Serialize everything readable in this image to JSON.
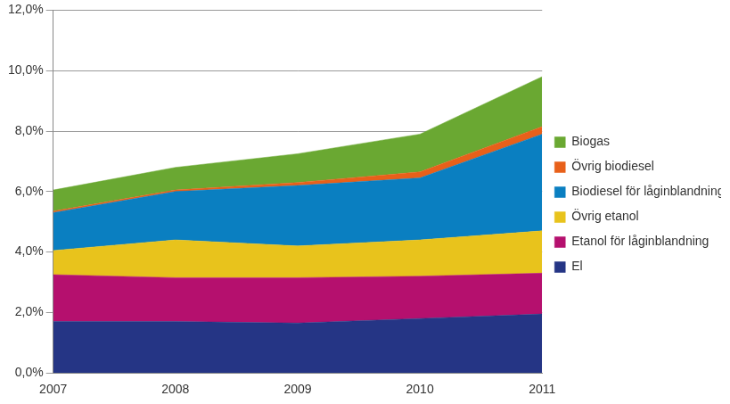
{
  "chart_data": {
    "type": "area",
    "stacked": true,
    "grid": true,
    "legend": "right",
    "categories": [
      "2007",
      "2008",
      "2009",
      "2010",
      "2011"
    ],
    "ylim": [
      0,
      12
    ],
    "yticks": [
      {
        "value": 0,
        "label": "0,0%"
      },
      {
        "value": 2,
        "label": "2,0%"
      },
      {
        "value": 4,
        "label": "4,0%"
      },
      {
        "value": 6,
        "label": "6,0%"
      },
      {
        "value": 8,
        "label": "8,0%"
      },
      {
        "value": 10,
        "label": "10,0%"
      },
      {
        "value": 12,
        "label": "12,0%"
      }
    ],
    "series": [
      {
        "name": "El",
        "color": "#253585",
        "values": [
          1.7,
          1.7,
          1.65,
          1.8,
          1.95
        ]
      },
      {
        "name": "Etanol för låginblandning",
        "color": "#b5106e",
        "values": [
          1.55,
          1.45,
          1.5,
          1.4,
          1.35
        ]
      },
      {
        "name": "Övrig etanol",
        "color": "#e8c31c",
        "values": [
          0.8,
          1.25,
          1.05,
          1.2,
          1.4
        ]
      },
      {
        "name": "Biodiesel för låginblandning",
        "color": "#0a7fc1",
        "values": [
          1.25,
          1.6,
          2.0,
          2.05,
          3.2
        ]
      },
      {
        "name": "Övrig biodiesel",
        "color": "#e8601a",
        "values": [
          0.05,
          0.05,
          0.1,
          0.2,
          0.25
        ]
      },
      {
        "name": "Biogas",
        "color": "#6aa832",
        "values": [
          0.7,
          0.75,
          0.95,
          1.25,
          1.65
        ]
      }
    ]
  }
}
